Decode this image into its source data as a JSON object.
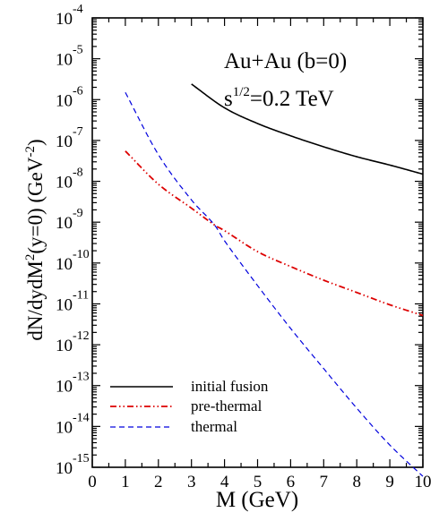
{
  "chart_data": {
    "type": "line",
    "xlabel": "M (GeV)",
    "ylabel": {
      "prefix": "dN/dydM",
      "exp2": "2",
      "middle": "(y=0) (GeV",
      "exp_minus2": "-2",
      "suffix": ")"
    },
    "xlim": [
      0,
      10
    ],
    "ylim_log10": [
      -15,
      -4
    ],
    "y_scale": "log",
    "grid": false,
    "legend_position": "bottom-left",
    "xticks": [
      "0",
      "1",
      "2",
      "3",
      "4",
      "5",
      "6",
      "7",
      "8",
      "9",
      "10"
    ],
    "yticks": [
      {
        "base": "10",
        "exp": "-4"
      },
      {
        "base": "10",
        "exp": "-5"
      },
      {
        "base": "10",
        "exp": "-6"
      },
      {
        "base": "10",
        "exp": "-7"
      },
      {
        "base": "10",
        "exp": "-8"
      },
      {
        "base": "10",
        "exp": "-9"
      },
      {
        "base": "10",
        "exp": "-10"
      },
      {
        "base": "10",
        "exp": "-11"
      },
      {
        "base": "10",
        "exp": "-12"
      },
      {
        "base": "10",
        "exp": "-13"
      },
      {
        "base": "10",
        "exp": "-14"
      },
      {
        "base": "10",
        "exp": "-15"
      }
    ],
    "annotations": {
      "system": "Au+Au (b=0)",
      "energy_prefix": "s",
      "energy_exp": "1/2",
      "energy_suffix": "=0.2 TeV"
    },
    "series": [
      {
        "name": "initial fusion",
        "color": "#000000",
        "dash": "solid",
        "x": [
          3,
          4,
          5,
          6,
          7,
          8,
          9,
          10
        ],
        "y": [
          2.4e-06,
          6.3e-07,
          2.6e-07,
          1.3e-07,
          7e-08,
          4e-08,
          2.5e-08,
          1.5e-08
        ]
      },
      {
        "name": "pre-thermal",
        "color": "#dd0000",
        "dash": "dash-dot-dot",
        "x": [
          1,
          2,
          3,
          3.7,
          4,
          5,
          6,
          7,
          8,
          9,
          10
        ],
        "y": [
          5.5e-08,
          8.5e-09,
          2.2e-09,
          8.5e-10,
          6.2e-10,
          1.9e-10,
          8.2e-11,
          3.8e-11,
          1.9e-11,
          9.5e-12,
          5.2e-12
        ]
      },
      {
        "name": "thermal",
        "color": "#0000dd",
        "dash": "dashed",
        "x": [
          1,
          2,
          3,
          3.7,
          4,
          5,
          6,
          7,
          8,
          9,
          10
        ],
        "y": [
          1.5e-06,
          4.5e-08,
          3.5e-09,
          8.5e-10,
          3.5e-10,
          2.8e-11,
          2.5e-12,
          2.6e-13,
          2.8e-14,
          3.5e-15,
          6e-16
        ]
      }
    ]
  }
}
